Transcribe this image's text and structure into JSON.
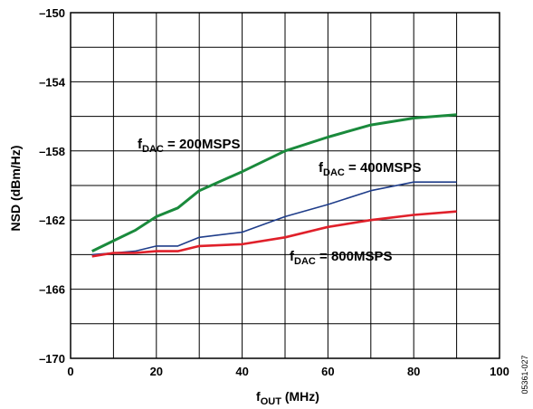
{
  "figure_id": "05361-027",
  "chart_data": {
    "type": "line",
    "xlabel": {
      "main": "f",
      "sub": "OUT",
      "rest": " (MHz)"
    },
    "ylabel": "NSD (dBm/Hz)",
    "xlim": [
      0,
      100
    ],
    "ylim": [
      -170,
      -150
    ],
    "x_ticks": [
      0,
      10,
      20,
      30,
      40,
      50,
      60,
      70,
      80,
      90,
      100
    ],
    "x_tick_labels": [
      "0",
      "20",
      "40",
      "60",
      "80",
      "100"
    ],
    "x_tick_label_values": [
      0,
      20,
      40,
      60,
      80,
      100
    ],
    "y_ticks": [
      -170,
      -168,
      -166,
      -164,
      -162,
      -160,
      -158,
      -156,
      -154,
      -152,
      -150
    ],
    "y_tick_labels": [
      "–150",
      "–154",
      "–158",
      "–162",
      "–166",
      "–170"
    ],
    "y_tick_label_values": [
      -150,
      -154,
      -158,
      -162,
      -166,
      -170
    ],
    "grid": true,
    "series": [
      {
        "label_main": "f",
        "label_sub": "DAC",
        "label_rest": " = 200MSPS",
        "color": "#1a8a3c",
        "x": [
          5,
          10,
          15,
          20,
          25,
          30,
          40,
          50,
          60,
          70,
          80,
          90
        ],
        "y": [
          -163.8,
          -163.2,
          -162.6,
          -161.8,
          -161.3,
          -160.3,
          -159.2,
          -158.0,
          -157.2,
          -156.5,
          -156.1,
          -155.9
        ]
      },
      {
        "label_main": "f",
        "label_sub": "DAC",
        "label_rest": " = 400MSPS",
        "color": "#1f3d8a",
        "x": [
          5,
          10,
          15,
          20,
          25,
          30,
          40,
          50,
          60,
          70,
          80,
          90
        ],
        "y": [
          -164.0,
          -163.9,
          -163.8,
          -163.5,
          -163.5,
          -163.0,
          -162.7,
          -161.8,
          -161.1,
          -160.3,
          -159.8,
          -159.8
        ]
      },
      {
        "label_main": "f",
        "label_sub": "DAC",
        "label_rest": " = 800MSPS",
        "color": "#e0202a",
        "x": [
          5,
          10,
          15,
          20,
          25,
          30,
          40,
          50,
          60,
          70,
          80,
          90
        ],
        "y": [
          -164.1,
          -163.9,
          -163.9,
          -163.8,
          -163.8,
          -163.5,
          -163.4,
          -163.0,
          -162.4,
          -162.0,
          -161.7,
          -161.5
        ]
      }
    ]
  }
}
